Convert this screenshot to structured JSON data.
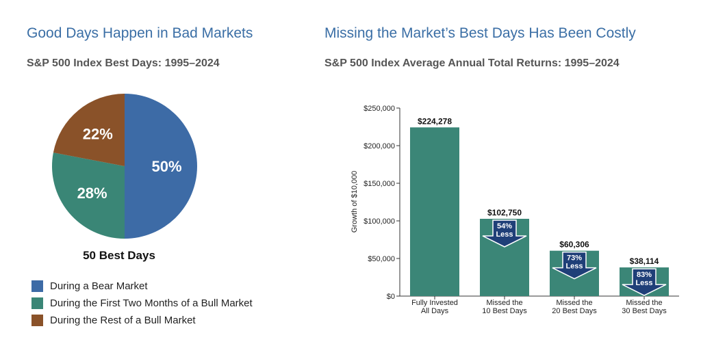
{
  "left_panel": {
    "title": "Good Days Happen in Bad Markets",
    "subtitle": "S&P 500 Index Best Days: 1995–2024"
  },
  "right_panel": {
    "title": "Missing the Market’s Best Days Has Been Costly",
    "subtitle": "S&P 500 Index Average Annual Total Returns: 1995–2024"
  },
  "chart_data": [
    {
      "type": "pie",
      "title": "S&P 500 Index Best Days: 1995–2024",
      "caption": "50 Best Days",
      "slices": [
        {
          "label": "During a Bear Market",
          "value": 50,
          "display": "50%",
          "color": "#3d6ba6"
        },
        {
          "label": "During the First Two Months of a Bull Market",
          "value": 28,
          "display": "28%",
          "color": "#3a8676"
        },
        {
          "label": "During the Rest of a Bull Market",
          "value": 22,
          "display": "22%",
          "color": "#8a5229"
        }
      ]
    },
    {
      "type": "bar",
      "title": "S&P 500 Index Average Annual Total Returns: 1995–2024",
      "ylabel": "Growth of $10,000",
      "xlabel": "",
      "ylim": [
        0,
        250000
      ],
      "yticks": [
        0,
        50000,
        100000,
        150000,
        200000,
        250000
      ],
      "ytick_labels": [
        "$0",
        "$50,000",
        "$100,000",
        "$150,000",
        "$200,000",
        "$250,000"
      ],
      "categories": [
        [
          "Fully Invested",
          "All Days"
        ],
        [
          "Missed the",
          "10 Best Days"
        ],
        [
          "Missed the",
          "20 Best Days"
        ],
        [
          "Missed the",
          "30 Best Days"
        ]
      ],
      "values": [
        224278,
        102750,
        60306,
        38114
      ],
      "value_labels": [
        "$224,278",
        "$102,750",
        "$60,306",
        "$38,114"
      ],
      "callouts": [
        null,
        [
          "54%",
          "Less"
        ],
        [
          "73%",
          "Less"
        ],
        [
          "83%",
          "Less"
        ]
      ],
      "bar_color": "#3b8677",
      "callout_color": "#1f3f78"
    }
  ]
}
